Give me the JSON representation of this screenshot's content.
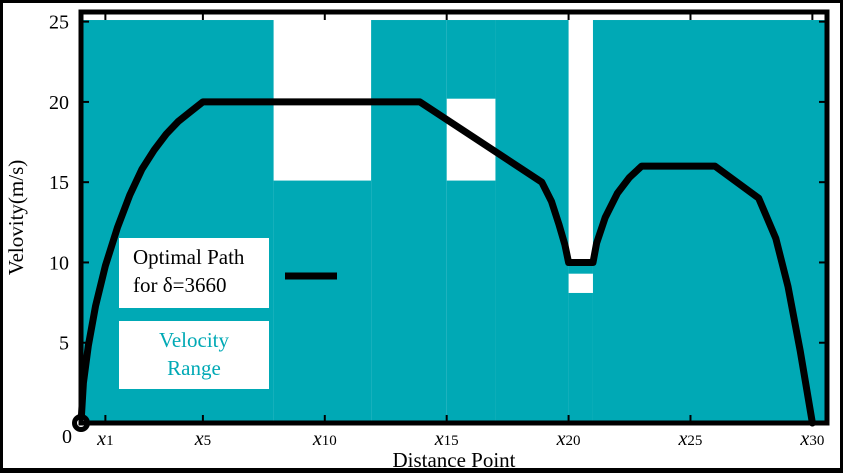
{
  "chart_data": {
    "type": "line",
    "title": "",
    "xlabel": "Distance Point",
    "ylabel": "Velovity(m/s)",
    "xlim": [
      0,
      30.6
    ],
    "ylim": [
      0,
      25.6
    ],
    "grid": false,
    "x_tick_labels": [
      {
        "x": 1,
        "base": "x",
        "sub": "1"
      },
      {
        "x": 5,
        "base": "x",
        "sub": "5"
      },
      {
        "x": 10,
        "base": "x",
        "sub": "10"
      },
      {
        "x": 15,
        "base": "x",
        "sub": "15"
      },
      {
        "x": 20,
        "base": "x",
        "sub": "20"
      },
      {
        "x": 25,
        "base": "x",
        "sub": "25"
      },
      {
        "x": 30,
        "base": "x",
        "sub": "30"
      }
    ],
    "x_origin_label": "0",
    "y_ticks": [
      5,
      10,
      15,
      20,
      25
    ],
    "y_tick_labels": [
      "5",
      "10",
      "15",
      "20",
      "25"
    ],
    "velocity_range": {
      "name": "Velocity Range",
      "color": "#00a9b5",
      "bands": [
        {
          "x0": 0.0,
          "x1": 7.9,
          "y0": 0,
          "y1": 25.1
        },
        {
          "x0": 7.9,
          "x1": 11.9,
          "y0": 0,
          "y1": 15.1
        },
        {
          "x0": 11.9,
          "x1": 15.0,
          "y0": 0,
          "y1": 25.1
        },
        {
          "x0": 15.0,
          "x1": 17.0,
          "y0": 0,
          "y1": 15.1
        },
        {
          "x0": 15.0,
          "x1": 17.0,
          "y0": 20.2,
          "y1": 25.1
        },
        {
          "x0": 17.0,
          "x1": 20.0,
          "y0": 0,
          "y1": 25.1
        },
        {
          "x0": 20.0,
          "x1": 21.0,
          "y0": 0,
          "y1": 8.1
        },
        {
          "x0": 20.0,
          "x1": 21.0,
          "y0": 9.3,
          "y1": 10.0
        },
        {
          "x0": 21.0,
          "x1": 30.6,
          "y0": 0,
          "y1": 25.1
        }
      ]
    },
    "series": [
      {
        "name": "Optimal Path for δ=3660",
        "color": "#000000",
        "points": [
          [
            0.0,
            0.0
          ],
          [
            0.1,
            2.5
          ],
          [
            0.3,
            4.8
          ],
          [
            0.6,
            7.3
          ],
          [
            1.0,
            9.8
          ],
          [
            1.5,
            12.2
          ],
          [
            2.0,
            14.2
          ],
          [
            2.5,
            15.8
          ],
          [
            3.0,
            17.0
          ],
          [
            3.5,
            18.0
          ],
          [
            4.0,
            18.8
          ],
          [
            4.5,
            19.4
          ],
          [
            5.0,
            20.0
          ],
          [
            13.9,
            20.0
          ],
          [
            18.9,
            15.0
          ],
          [
            19.3,
            13.8
          ],
          [
            19.6,
            12.4
          ],
          [
            19.85,
            11.1
          ],
          [
            20.0,
            10.0
          ],
          [
            21.0,
            10.0
          ],
          [
            21.15,
            11.2
          ],
          [
            21.5,
            12.8
          ],
          [
            22.0,
            14.3
          ],
          [
            22.5,
            15.3
          ],
          [
            23.0,
            16.0
          ],
          [
            26.0,
            16.0
          ],
          [
            27.8,
            14.0
          ],
          [
            28.5,
            11.5
          ],
          [
            29.0,
            8.5
          ],
          [
            29.5,
            4.5
          ],
          [
            30.0,
            0.0
          ]
        ],
        "start_marker": [
          0.0,
          0.0
        ]
      }
    ],
    "legend": {
      "placement": "left-center",
      "entries": [
        {
          "label_lines": [
            "Optimal Path",
            "for δ=3660"
          ],
          "kind": "line",
          "color": "#000000"
        },
        {
          "label_lines": [
            "Velocity",
            "Range"
          ],
          "kind": "patch",
          "color": "#00a9b5",
          "text_color": "#00a9b5"
        }
      ]
    }
  }
}
